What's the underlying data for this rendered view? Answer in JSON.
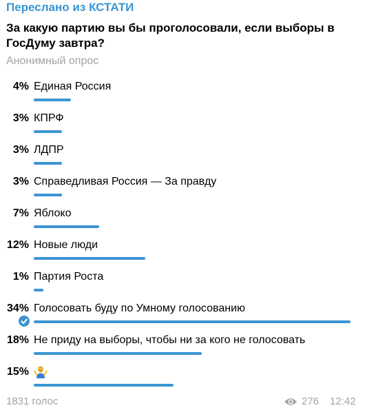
{
  "message": {
    "forwarded_label": "Переслано из КСТАТИ",
    "question": "За какую партию вы бы проголосовали, если выборы в ГосДуму завтра?",
    "poll_type": "Анонимный опрос",
    "options": [
      {
        "percent_label": "4%",
        "percent": 4,
        "label": "Единая Россия"
      },
      {
        "percent_label": "3%",
        "percent": 3,
        "label": "КПРФ"
      },
      {
        "percent_label": "3%",
        "percent": 3,
        "label": "ЛДПР"
      },
      {
        "percent_label": "3%",
        "percent": 3,
        "label": "Справедливая Россия — За правду"
      },
      {
        "percent_label": "7%",
        "percent": 7,
        "label": "Яблоко"
      },
      {
        "percent_label": "12%",
        "percent": 12,
        "label": "Новые люди"
      },
      {
        "percent_label": "1%",
        "percent": 1,
        "label": "Партия Роста"
      },
      {
        "percent_label": "34%",
        "percent": 34,
        "label": "Голосовать буду по Умному голосованию",
        "chosen": true
      },
      {
        "percent_label": "18%",
        "percent": 18,
        "label": "Не приду на выборы, чтобы ни за кого не голосовать"
      },
      {
        "percent_label": "15%",
        "percent": 15,
        "label": "",
        "icon": "person-shrugging-emoji"
      }
    ],
    "votes_label": "1831 голос",
    "views": "276",
    "time": "12:42"
  },
  "colors": {
    "accent": "#3a95d2",
    "muted": "#a3a3a3"
  }
}
